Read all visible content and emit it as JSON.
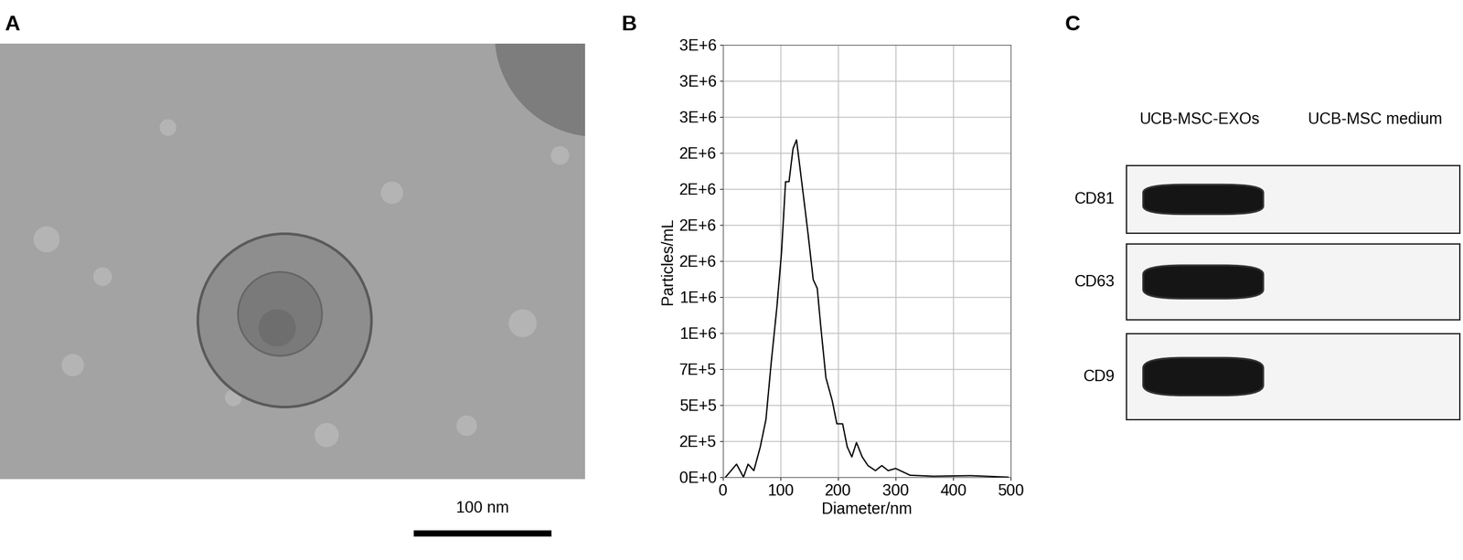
{
  "panel_labels": [
    "A",
    "B",
    "C"
  ],
  "image": {
    "scale_bar": "100 nm"
  },
  "chart_data": {
    "type": "line",
    "x": [
      5,
      24,
      36,
      44,
      54,
      65,
      75,
      84,
      94,
      102,
      109,
      115,
      122,
      128,
      133,
      141,
      148,
      157,
      164,
      170,
      179,
      190,
      198,
      208,
      216,
      224,
      232,
      242,
      252,
      265,
      276,
      287,
      300,
      325,
      365,
      430,
      495
    ],
    "values": [
      0,
      90000,
      0,
      90000,
      45000,
      207000,
      400000,
      790000,
      1180000,
      1560000,
      2050000,
      2050000,
      2280000,
      2340000,
      2180000,
      1920000,
      1690000,
      1370000,
      1310000,
      1050000,
      690000,
      530000,
      370000,
      370000,
      210000,
      140000,
      240000,
      140000,
      80000,
      45000,
      80000,
      45000,
      60000,
      13000,
      6000,
      10000,
      0
    ],
    "color": "#000000",
    "x_label": "Diameter/nm",
    "y_label": "Particles/mL",
    "xlim": [
      0,
      500
    ],
    "ylim": [
      0,
      3000000
    ],
    "xticks": [
      0,
      100,
      200,
      300,
      400,
      500
    ],
    "yticks": [
      {
        "value": 0,
        "label": "0E+0"
      },
      {
        "value": 250000,
        "label": "2E+5"
      },
      {
        "value": 500000,
        "label": "5E+5"
      },
      {
        "value": 750000,
        "label": "7E+5"
      },
      {
        "value": 1000000,
        "label": "1E+6"
      },
      {
        "value": 1250000,
        "label": "1E+6"
      },
      {
        "value": 1500000,
        "label": "2E+6"
      },
      {
        "value": 1750000,
        "label": "2E+6"
      },
      {
        "value": 2000000,
        "label": "2E+6"
      },
      {
        "value": 2250000,
        "label": "2E+6"
      },
      {
        "value": 2500000,
        "label": "3E+6"
      },
      {
        "value": 2750000,
        "label": "3E+6"
      },
      {
        "value": 3000000,
        "label": "3E+6"
      }
    ],
    "grid": true
  },
  "blot": {
    "columns": [
      "UCB-MSC-EXOs",
      "UCB-MSC medium"
    ],
    "rows": [
      "CD81",
      "CD63",
      "CD9"
    ],
    "bands": [
      [
        true,
        false
      ],
      [
        true,
        false
      ],
      [
        true,
        false
      ]
    ]
  }
}
